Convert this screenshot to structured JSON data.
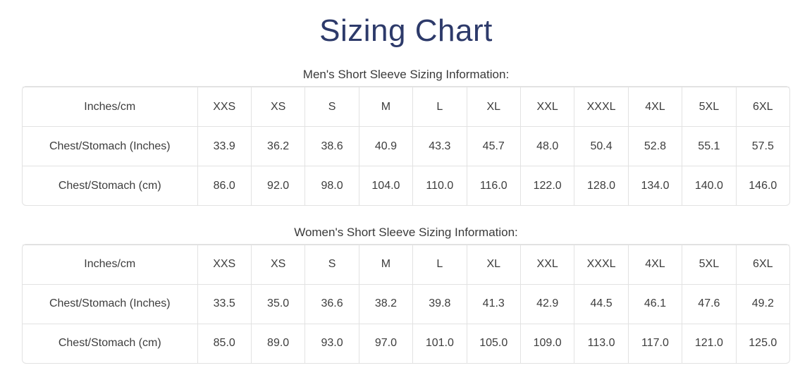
{
  "page": {
    "title": "Sizing Chart"
  },
  "colors": {
    "title": "#2d3a6a",
    "body_text": "#3d3d3d",
    "table_border": "#e2e2e2"
  },
  "tables": [
    {
      "caption": "Men's Short Sleeve Sizing Information:",
      "header": [
        "Inches/cm",
        "XXS",
        "XS",
        "S",
        "M",
        "L",
        "XL",
        "XXL",
        "XXXL",
        "4XL",
        "5XL",
        "6XL"
      ],
      "rows": [
        {
          "label": "Chest/Stomach (Inches)",
          "values": [
            "33.9",
            "36.2",
            "38.6",
            "40.9",
            "43.3",
            "45.7",
            "48.0",
            "50.4",
            "52.8",
            "55.1",
            "57.5"
          ]
        },
        {
          "label": "Chest/Stomach (cm)",
          "values": [
            "86.0",
            "92.0",
            "98.0",
            "104.0",
            "110.0",
            "116.0",
            "122.0",
            "128.0",
            "134.0",
            "140.0",
            "146.0"
          ]
        }
      ]
    },
    {
      "caption": "Women's Short Sleeve Sizing Information:",
      "header": [
        "Inches/cm",
        "XXS",
        "XS",
        "S",
        "M",
        "L",
        "XL",
        "XXL",
        "XXXL",
        "4XL",
        "5XL",
        "6XL"
      ],
      "rows": [
        {
          "label": "Chest/Stomach (Inches)",
          "values": [
            "33.5",
            "35.0",
            "36.6",
            "38.2",
            "39.8",
            "41.3",
            "42.9",
            "44.5",
            "46.1",
            "47.6",
            "49.2"
          ]
        },
        {
          "label": "Chest/Stomach (cm)",
          "values": [
            "85.0",
            "89.0",
            "93.0",
            "97.0",
            "101.0",
            "105.0",
            "109.0",
            "113.0",
            "117.0",
            "121.0",
            "125.0"
          ]
        }
      ]
    }
  ]
}
